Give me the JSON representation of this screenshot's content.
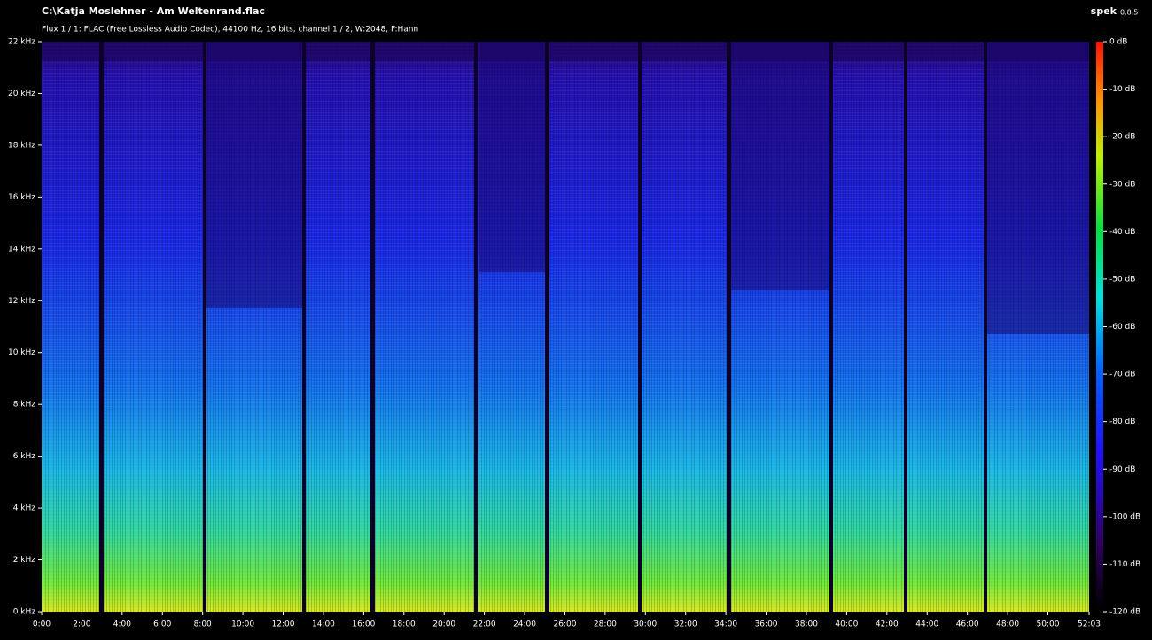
{
  "window": {
    "title": "C:\\Katja Moslehner - Am Weltenrand.flac",
    "info": "Flux 1 / 1: FLAC (Free Lossless Audio Codec), 44100 Hz, 16 bits, channel 1 / 2, W:2048, F:Hann",
    "app_name": "spek",
    "app_version": "0.8.5"
  },
  "frequency_axis": [
    "0 kHz",
    "2 kHz",
    "4 kHz",
    "6 kHz",
    "8 kHz",
    "10 kHz",
    "12 kHz",
    "14 kHz",
    "16 kHz",
    "18 kHz",
    "20 kHz",
    "22 kHz"
  ],
  "time_axis": [
    "0:00",
    "2:00",
    "4:00",
    "6:00",
    "8:00",
    "10:00",
    "12:00",
    "14:00",
    "16:00",
    "18:00",
    "20:00",
    "22:00",
    "24:00",
    "26:00",
    "28:00",
    "30:00",
    "32:00",
    "34:00",
    "36:00",
    "38:00",
    "40:00",
    "42:00",
    "44:00",
    "46:00",
    "48:00",
    "50:00",
    "52:03"
  ],
  "level_axis": [
    "0 dB",
    "-10 dB",
    "-20 dB",
    "-30 dB",
    "-40 dB",
    "-50 dB",
    "-60 dB",
    "-70 dB",
    "-80 dB",
    "-90 dB",
    "-100 dB",
    "-110 dB",
    "-120 dB"
  ]
}
